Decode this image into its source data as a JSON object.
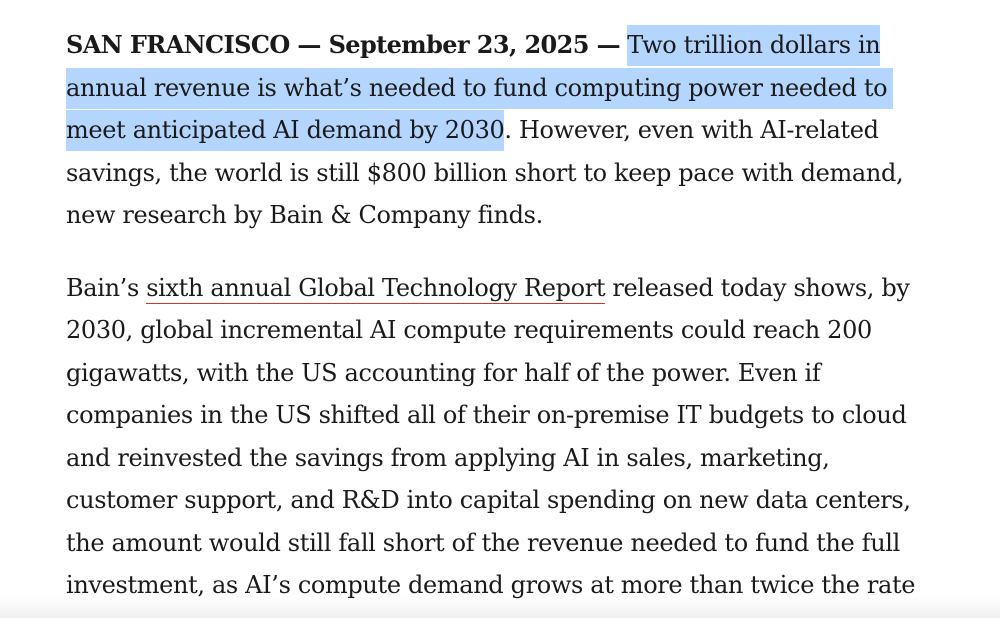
{
  "article": {
    "p1": {
      "dateline": "SAN FRANCISCO — September 23, 2025 —",
      "highlight_1": "Two trillion dollars in",
      "line_2": "annual revenue is what’s needed to fund computing power needed to",
      "line_3_highlight": "meet anticipated AI demand by 2030",
      "line_3_rest": ". However, even with AI-related",
      "line_4": "savings, the world is still $800 billion short to keep pace with demand,",
      "line_5": "new research by Bain & Company finds."
    },
    "p2": {
      "line_1_pre": "Bain’s ",
      "report_link": "sixth annual Global Technology Report",
      "line_1_post": " released today shows, by",
      "line_2": "2030, global incremental AI compute requirements could reach 200",
      "line_3": "gigawatts, with the US accounting for half of the power. Even if",
      "line_4": "companies in the US shifted all of their on-premise IT budgets to cloud",
      "line_5": "and reinvested the savings from applying AI in sales, marketing,",
      "line_6": "customer support, and R&D into capital spending on new data centers,",
      "line_7": "the amount would still fall short of the revenue needed to fund the full",
      "line_8": "investment, as AI’s compute demand grows at more than twice the rate"
    }
  },
  "colors": {
    "selection": "#b4d5fe",
    "link_underline": "#d2342c",
    "text": "#1a1a1a"
  }
}
